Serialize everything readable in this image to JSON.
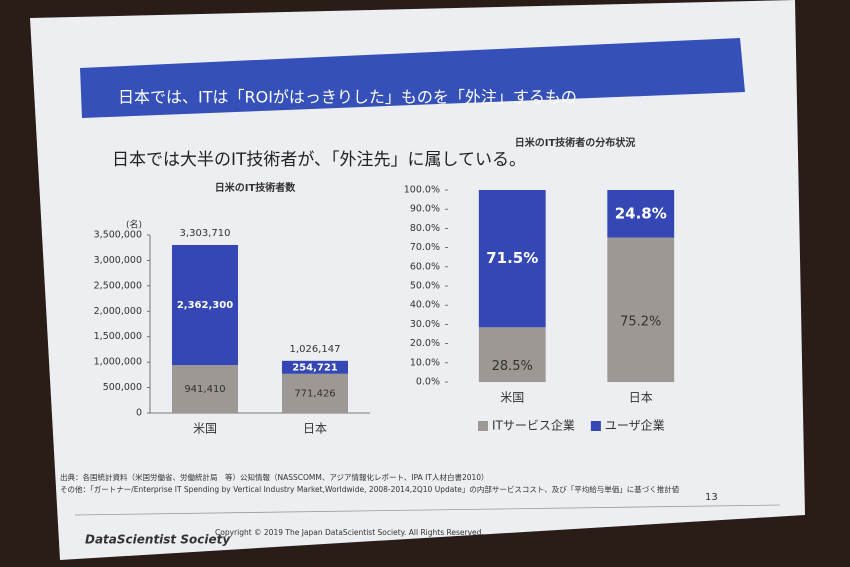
{
  "header": {
    "title": "日本では、ITは「ROIがはっきりした」ものを「外注」するもの"
  },
  "subtitle": "日本では大半のIT技術者が、「外注先」に属している。",
  "chart_data": [
    {
      "type": "stacked-bar",
      "title": "日米のIT技術者数",
      "y_unit_label": "(名)",
      "categories": [
        "米国",
        "日本"
      ],
      "series": [
        {
          "color": "#9d9893",
          "values": [
            941410,
            771426
          ],
          "value_labels": [
            "941,410",
            "771,426"
          ]
        },
        {
          "color": "#3447b5",
          "values": [
            2362300,
            254721
          ],
          "value_labels": [
            "2,362,300",
            "254,721"
          ]
        }
      ],
      "totals": {
        "values": [
          3303710,
          1026147
        ],
        "value_labels": [
          "3,303,710",
          "1,026,147"
        ]
      },
      "ylim": [
        0,
        3500000
      ],
      "yticks": [
        0,
        {
          "value": 500000,
          "label": "500,000"
        },
        {
          "value": 1000000,
          "label": "1,000,000"
        },
        {
          "value": 1500000,
          "label": "1,500,000"
        },
        {
          "value": 2000000,
          "label": "2,000,000"
        },
        {
          "value": 2500000,
          "label": "2,500,000"
        },
        {
          "value": 3000000,
          "label": "3,000,000"
        },
        {
          "value": 3500000,
          "label": "3,500,000"
        }
      ]
    },
    {
      "type": "stacked-bar",
      "title": "日米のIT技術者の分布状況",
      "categories": [
        "米国",
        "日本"
      ],
      "series": [
        {
          "name": "ITサービス企業",
          "color": "#9d9893",
          "values": [
            28.5,
            75.2
          ],
          "value_labels": [
            "28.5%",
            "75.2%"
          ]
        },
        {
          "name": "ユーザ企業",
          "color": "#3447b5",
          "values": [
            71.5,
            24.8
          ],
          "value_labels": [
            "71.5%",
            "24.8%"
          ]
        }
      ],
      "ylim": [
        0,
        100
      ],
      "yticks": [
        {
          "value": 0,
          "label": "0.0%"
        },
        {
          "value": 10,
          "label": "10.0%"
        },
        {
          "value": 20,
          "label": "20.0%"
        },
        {
          "value": 30,
          "label": "30.0%"
        },
        {
          "value": 40,
          "label": "40.0%"
        },
        {
          "value": 50,
          "label": "50.0%"
        },
        {
          "value": 60,
          "label": "60.0%"
        },
        {
          "value": 70,
          "label": "70.0%"
        },
        {
          "value": 80,
          "label": "80.0%"
        },
        {
          "value": 90,
          "label": "90.0%"
        },
        {
          "value": 100,
          "label": "100.0%"
        }
      ],
      "legend": "bottom"
    }
  ],
  "source": [
    "出典：各国統計資料（米国労働省、労働統計局　等）公知情報（NASSCOMM、アジア情報化レポート、IPA IT人材白書2010）",
    "その他：「ガートナー/Enterprise IT Spending by Vertical Industry Market,Worldwide, 2008-2014,2Q10 Update」の内部サービスコスト、及び「平均給与単価」に基づく推計値"
  ],
  "page_number": "13",
  "footer": {
    "logo": "DataScientist Society",
    "copyright": "Copyright © 2019 The Japan DataScientist Society. All Rights Reserved."
  }
}
